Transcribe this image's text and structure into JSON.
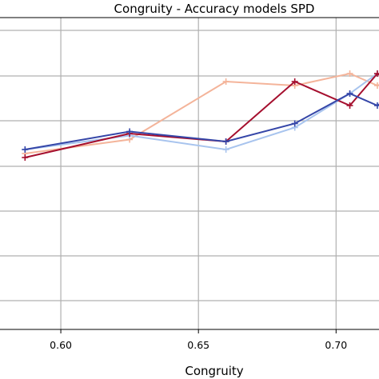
{
  "chart_data": {
    "type": "line",
    "title": "Congruity - Accuracy models SPD",
    "xlabel": "Congruity",
    "ylabel": "",
    "x_ticks": [
      "0.60",
      "0.65",
      "0.70"
    ],
    "grid": true,
    "legend": "none",
    "xlim": [
      0.59,
      0.72
    ],
    "ylim": [
      0,
      1
    ],
    "series": [
      {
        "color": "#f4b49a",
        "marker": "+",
        "points": [
          [
            0.587,
            0.44
          ],
          [
            0.625,
            0.475
          ],
          [
            0.66,
            0.62
          ],
          [
            0.685,
            0.61
          ],
          [
            0.705,
            0.64
          ],
          [
            0.715,
            0.61
          ],
          [
            0.722,
            0.63
          ]
        ]
      },
      {
        "color": "#a8c4ee",
        "marker": "+",
        "points": [
          [
            0.587,
            0.45
          ],
          [
            0.625,
            0.485
          ],
          [
            0.66,
            0.45
          ],
          [
            0.685,
            0.505
          ],
          [
            0.705,
            0.59
          ],
          [
            0.715,
            0.64
          ],
          [
            0.722,
            0.61
          ]
        ]
      },
      {
        "color": "#a50f2e",
        "marker": "+",
        "points": [
          [
            0.587,
            0.43
          ],
          [
            0.625,
            0.49
          ],
          [
            0.66,
            0.47
          ],
          [
            0.685,
            0.62
          ],
          [
            0.705,
            0.56
          ],
          [
            0.715,
            0.64
          ],
          [
            0.722,
            0.61
          ]
        ]
      },
      {
        "color": "#3546a8",
        "marker": "+",
        "points": [
          [
            0.587,
            0.45
          ],
          [
            0.625,
            0.495
          ],
          [
            0.66,
            0.47
          ],
          [
            0.685,
            0.515
          ],
          [
            0.705,
            0.59
          ],
          [
            0.715,
            0.56
          ],
          [
            0.722,
            0.59
          ]
        ]
      }
    ]
  }
}
